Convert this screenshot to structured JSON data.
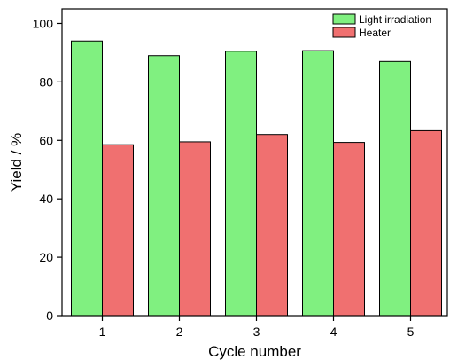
{
  "chart_data": {
    "type": "bar",
    "categories": [
      "1",
      "2",
      "3",
      "4",
      "5"
    ],
    "series": [
      {
        "name": "Light irradiation",
        "values": [
          94,
          89,
          90.5,
          90.7,
          87
        ],
        "color": "#80f080"
      },
      {
        "name": "Heater",
        "values": [
          58.5,
          59.5,
          62,
          59.3,
          63.3
        ],
        "color": "#f07070"
      }
    ],
    "xlabel": "Cycle number",
    "ylabel": "Yield / %",
    "ylim": [
      0,
      105
    ],
    "yticks": [
      0,
      20,
      40,
      60,
      80,
      100
    ],
    "grid": false,
    "legend_position": "top-right"
  }
}
